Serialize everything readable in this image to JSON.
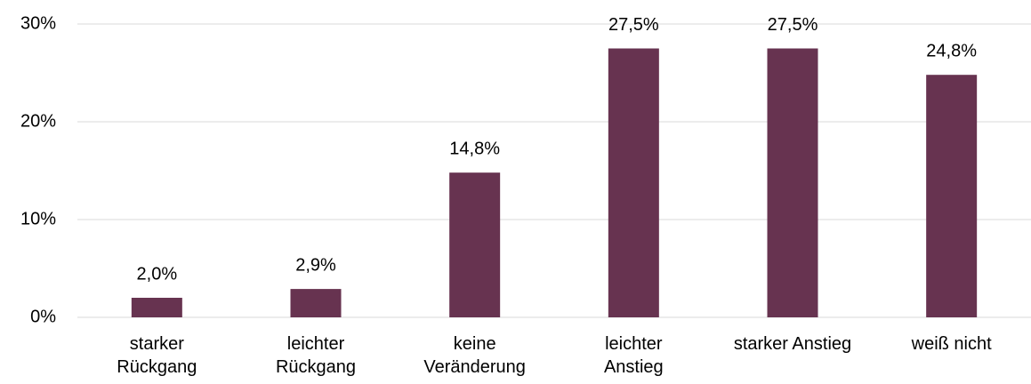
{
  "chart_data": {
    "type": "bar",
    "categories": [
      "starker\nRückgang",
      "leichter\nRückgang",
      "keine\nVeränderung",
      "leichter\nAnstieg",
      "starker Anstieg",
      "weiß nicht"
    ],
    "values": [
      2.0,
      2.9,
      14.8,
      27.5,
      27.5,
      24.8
    ],
    "value_labels": [
      "2,0%",
      "2,9%",
      "14,8%",
      "27,5%",
      "27,5%",
      "24,8%"
    ],
    "color": "#673350",
    "ylim": [
      0,
      30
    ],
    "yticks": [
      {
        "value": 0,
        "label": "0%"
      },
      {
        "value": 10,
        "label": "10%"
      },
      {
        "value": 20,
        "label": "20%"
      },
      {
        "value": 30,
        "label": "30%"
      }
    ],
    "grid": true
  }
}
